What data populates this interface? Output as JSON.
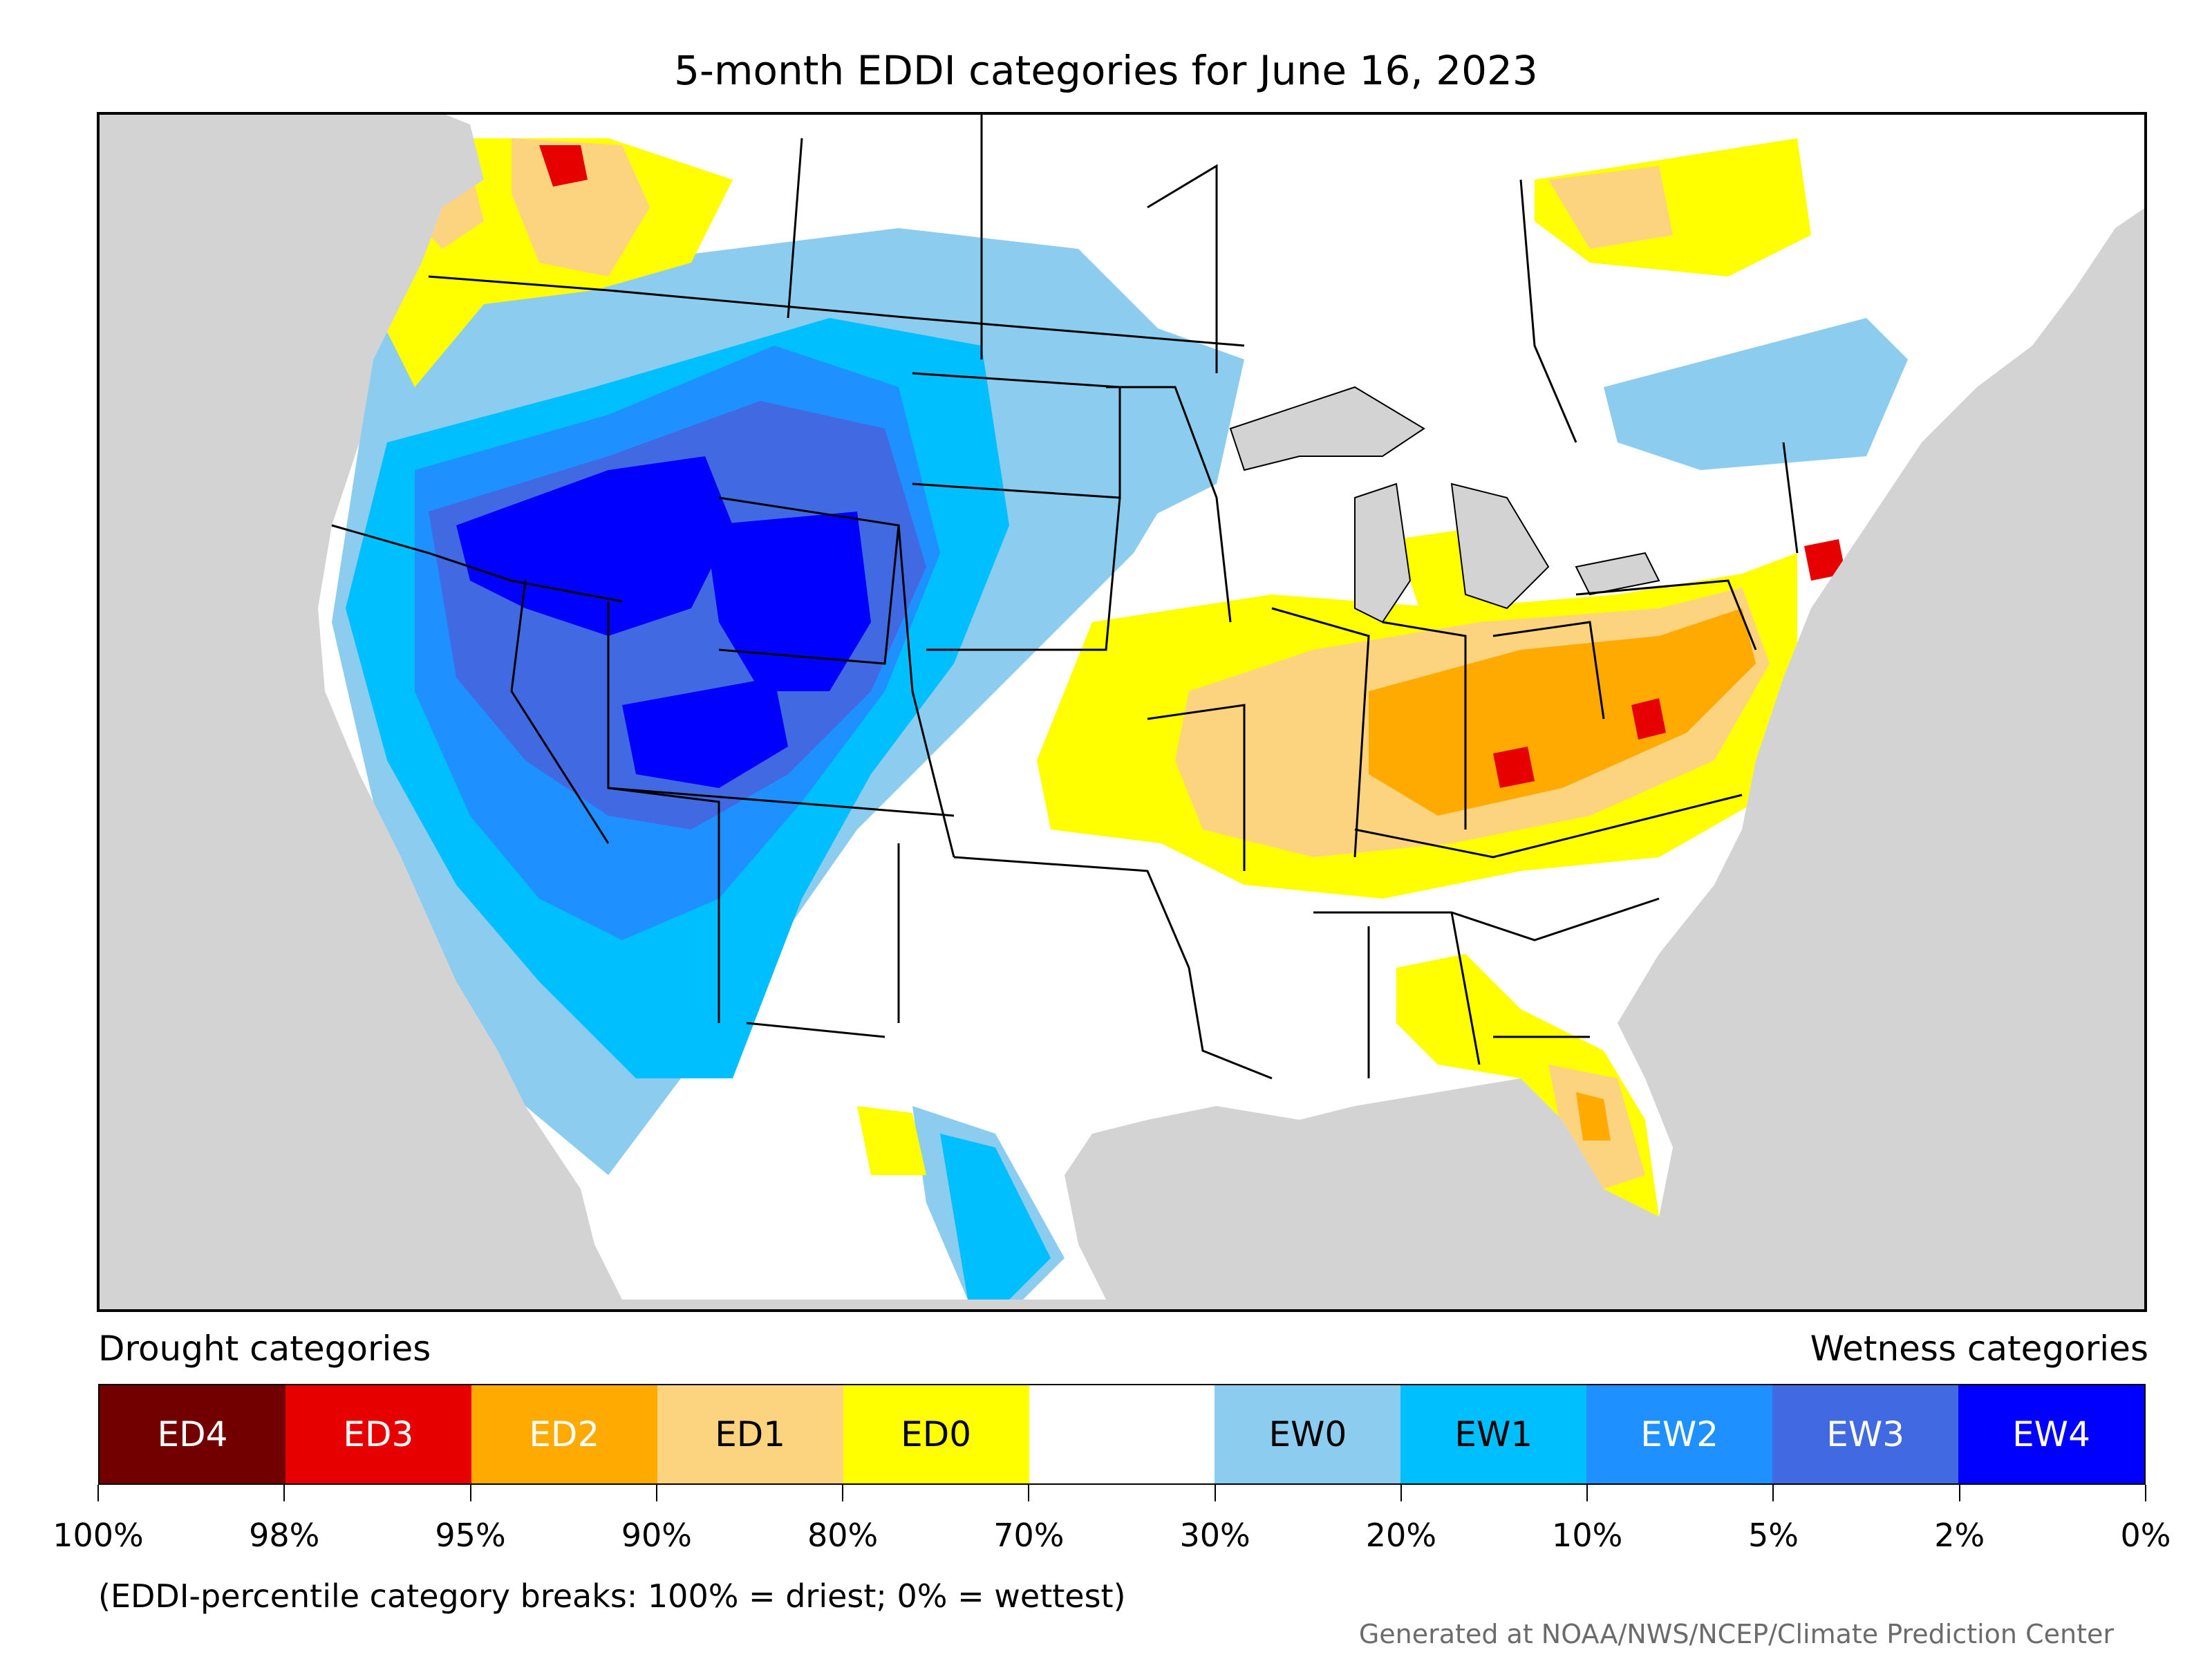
{
  "title": "5-month EDDI categories for June 16, 2023",
  "legend": {
    "drought_heading": "Drought categories",
    "wetness_heading": "Wetness categories",
    "categories": [
      {
        "label": "ED4",
        "color": "#730000",
        "text_color": "#ffffff"
      },
      {
        "label": "ED3",
        "color": "#e60000",
        "text_color": "#ffffff"
      },
      {
        "label": "ED2",
        "color": "#ffaa00",
        "text_color": "#ffffff"
      },
      {
        "label": "ED1",
        "color": "#fcd37f",
        "text_color": "#000000"
      },
      {
        "label": "ED0",
        "color": "#ffff00",
        "text_color": "#000000"
      },
      {
        "label": "",
        "color": "#ffffff",
        "text_color": "#000000"
      },
      {
        "label": "EW0",
        "color": "#8ccdef",
        "text_color": "#000000"
      },
      {
        "label": "EW1",
        "color": "#00bfff",
        "text_color": "#000000"
      },
      {
        "label": "EW2",
        "color": "#1e90ff",
        "text_color": "#ffffff"
      },
      {
        "label": "EW3",
        "color": "#4169e1",
        "text_color": "#ffffff"
      },
      {
        "label": "EW4",
        "color": "#0000ff",
        "text_color": "#ffffff"
      }
    ],
    "ticks": [
      "100%",
      "98%",
      "95%",
      "90%",
      "80%",
      "70%",
      "30%",
      "20%",
      "10%",
      "5%",
      "2%",
      "0%"
    ]
  },
  "note": "(EDDI-percentile category breaks: 100% = driest; 0% = wettest)",
  "credit": "Generated at NOAA/NWS/NCEP/Climate Prediction Center",
  "map": {
    "ocean_color": "#d3d3d3",
    "land_color": "#ffffff",
    "lake_color": "#d3d3d3"
  }
}
